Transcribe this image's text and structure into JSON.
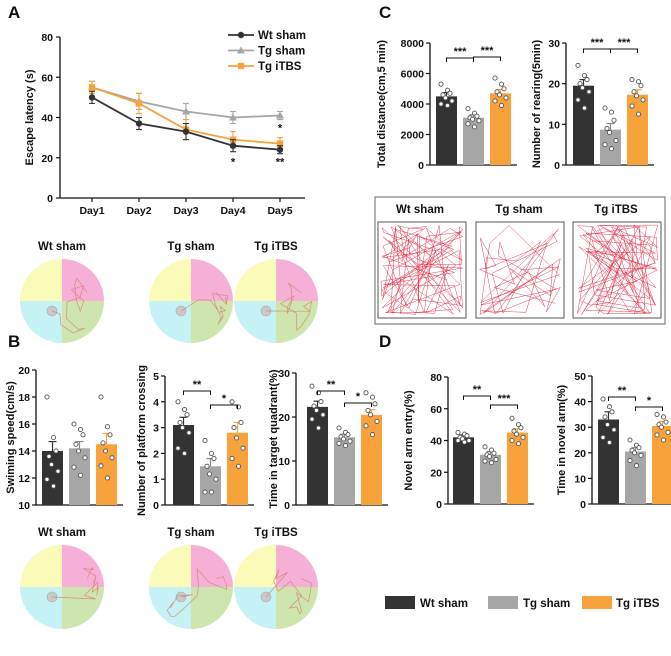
{
  "colors": {
    "wt": "#333333",
    "tg": "#a6a6a6",
    "itbs": "#f7a23b",
    "pink": "#f6b0d7",
    "yellow": "#fafab9",
    "cyan": "#c6f1f5",
    "green": "#cfe5ae",
    "track": "#e0203a"
  },
  "panels": {
    "a": "A",
    "b": "B",
    "c": "C",
    "d": "D"
  },
  "groups": {
    "wt": "Wt sham",
    "tg": "Tg sham",
    "itbs": "Tg iTBS"
  },
  "chart_data": [
    {
      "id": "escape-latency",
      "type": "line",
      "panel": "A",
      "x": [
        "Day1",
        "Day2",
        "Day3",
        "Day4",
        "Day5"
      ],
      "ylabel": "Escape latency (s)",
      "ylim": [
        0,
        80
      ],
      "yticks": [
        0,
        20,
        40,
        60,
        80
      ],
      "series": [
        {
          "key": "wt",
          "name": "Wt sham",
          "marker": "circle",
          "values": [
            50,
            37,
            33,
            26,
            24
          ],
          "err": [
            3,
            3,
            4,
            3,
            2
          ]
        },
        {
          "key": "tg",
          "name": "Tg sham",
          "marker": "triangle",
          "values": [
            55,
            48,
            43,
            40,
            41
          ],
          "err": [
            3,
            4,
            4,
            3,
            2
          ]
        },
        {
          "key": "itbs",
          "name": "Tg iTBS",
          "marker": "square",
          "values": [
            55,
            47,
            34,
            29,
            27
          ],
          "err": [
            3,
            5,
            5,
            4,
            3
          ]
        }
      ],
      "annotations": [
        {
          "x": "Day4",
          "text": "*"
        },
        {
          "x": "Day5",
          "text": "*"
        },
        {
          "x": "Day5",
          "text": "**"
        }
      ],
      "legend": "top-right"
    },
    {
      "id": "swim-speed",
      "type": "bar",
      "panel": "B",
      "ylabel": "Swiming speed(cm/s)",
      "ylim": [
        10,
        20
      ],
      "yticks": [
        10,
        12,
        14,
        16,
        18,
        20
      ],
      "categories": [
        "Wt sham",
        "Tg sham",
        "Tg iTBS"
      ],
      "values": [
        14.0,
        14.2,
        14.5
      ],
      "err": [
        0.7,
        0.5,
        0.8
      ],
      "points": [
        [
          18.0,
          15.0,
          14.0,
          13.6,
          13.0,
          12.5,
          11.9,
          11.4
        ],
        [
          16.0,
          15.6,
          15.2,
          14.5,
          14.0,
          13.5,
          12.8,
          12.2
        ],
        [
          18.0,
          15.8,
          15.2,
          14.6,
          14.0,
          13.5,
          12.9,
          12.0
        ]
      ],
      "sig": []
    },
    {
      "id": "platform-crossing",
      "type": "bar",
      "panel": "B",
      "ylabel": "Number of platform crossing",
      "ylim": [
        0,
        5
      ],
      "yticks": [
        0,
        1,
        2,
        3,
        4,
        5
      ],
      "categories": [
        "Wt sham",
        "Tg sham",
        "Tg iTBS"
      ],
      "values": [
        3.1,
        1.5,
        2.8
      ],
      "err": [
        0.3,
        0.3,
        0.4
      ],
      "points": [
        [
          4.0,
          3.7,
          3.5,
          3.2,
          3.0,
          2.8,
          2.2,
          2.0
        ],
        [
          2.5,
          2.0,
          1.8,
          1.5,
          1.2,
          1.0,
          0.5,
          0.5
        ],
        [
          4.0,
          3.8,
          3.2,
          3.0,
          2.6,
          2.2,
          1.8,
          1.5
        ]
      ],
      "sig": [
        {
          "from": 0,
          "to": 1,
          "text": "**"
        },
        {
          "from": 1,
          "to": 2,
          "text": "*"
        }
      ]
    },
    {
      "id": "target-quadrant",
      "type": "bar",
      "panel": "B",
      "ylabel": "Time in target quadrant(%)",
      "ylim": [
        0,
        30
      ],
      "yticks": [
        0,
        10,
        20,
        30
      ],
      "categories": [
        "Wt sham",
        "Tg sham",
        "Tg iTBS"
      ],
      "values": [
        22.3,
        15.4,
        20.5
      ],
      "err": [
        1.3,
        0.7,
        1.2
      ],
      "points": [
        [
          27.0,
          25.5,
          23.5,
          22.5,
          21.5,
          20.5,
          19.5,
          17.5
        ],
        [
          17.5,
          16.5,
          16.0,
          15.5,
          15.0,
          14.5,
          14.0,
          13.5
        ],
        [
          25.5,
          24.5,
          23.0,
          21.5,
          20.5,
          19.0,
          18.0,
          16.0
        ]
      ],
      "sig": [
        {
          "from": 0,
          "to": 1,
          "text": "**"
        },
        {
          "from": 1,
          "to": 2,
          "text": "*"
        }
      ]
    },
    {
      "id": "total-distance",
      "type": "bar",
      "panel": "C",
      "ylabel": "Total distance(cm,5 min)",
      "ylim": [
        0,
        8000
      ],
      "yticks": [
        0,
        2000,
        4000,
        6000,
        8000
      ],
      "categories": [
        "Wt sham",
        "Tg sham",
        "Tg iTBS"
      ],
      "values": [
        4500,
        3100,
        4700
      ],
      "err": [
        250,
        200,
        250
      ],
      "points": [
        [
          5300,
          4900,
          4700,
          4600,
          4400,
          4200,
          4000,
          3900
        ],
        [
          3700,
          3400,
          3200,
          3100,
          3000,
          2900,
          2700,
          2500
        ],
        [
          5700,
          5300,
          5000,
          4800,
          4600,
          4400,
          4200,
          3900
        ]
      ],
      "sig": [
        {
          "from": 0,
          "to": 1,
          "text": "***"
        },
        {
          "from": 1,
          "to": 2,
          "text": "***"
        }
      ]
    },
    {
      "id": "rearing",
      "type": "bar",
      "panel": "C",
      "ylabel": "Number of rearing(5min)",
      "ylim": [
        0,
        30
      ],
      "yticks": [
        0,
        10,
        20,
        30
      ],
      "categories": [
        "Wt sham",
        "Tg sham",
        "Tg iTBS"
      ],
      "values": [
        19.5,
        8.7,
        17.3
      ],
      "err": [
        1.5,
        1.5,
        1.2
      ],
      "points": [
        [
          24.5,
          22.0,
          21.0,
          20.0,
          19.0,
          18.0,
          16.0,
          14.0
        ],
        [
          14.0,
          13.0,
          11.0,
          9.0,
          8.0,
          6.0,
          5.0,
          4.0
        ],
        [
          21.0,
          20.5,
          19.5,
          18.0,
          17.0,
          16.0,
          14.5,
          12.5
        ]
      ],
      "sig": [
        {
          "from": 0,
          "to": 1,
          "text": "***"
        },
        {
          "from": 1,
          "to": 2,
          "text": "***"
        }
      ]
    },
    {
      "id": "novel-arm-entry",
      "type": "bar",
      "panel": "D",
      "ylabel": "Novel arm entry(%)",
      "ylim": [
        0,
        80
      ],
      "yticks": [
        0,
        20,
        40,
        60,
        80
      ],
      "categories": [
        "Wt sham",
        "Tg sham",
        "Tg iTBS"
      ],
      "values": [
        42,
        31,
        45
      ],
      "err": [
        1.5,
        2,
        2.5
      ],
      "points": [
        [
          45,
          44,
          43,
          42,
          41,
          40,
          40,
          39
        ],
        [
          36,
          34,
          32,
          31,
          30,
          28,
          27,
          26
        ],
        [
          54,
          50,
          48,
          46,
          44,
          42,
          40,
          38
        ]
      ],
      "sig": [
        {
          "from": 0,
          "to": 1,
          "text": "**"
        },
        {
          "from": 1,
          "to": 2,
          "text": "***"
        }
      ]
    },
    {
      "id": "time-novel-arm",
      "type": "bar",
      "panel": "D",
      "ylabel": "Time in novel arm(%)",
      "ylim": [
        0,
        50
      ],
      "yticks": [
        0,
        10,
        20,
        30,
        40,
        50
      ],
      "categories": [
        "Wt sham",
        "Tg sham",
        "Tg iTBS"
      ],
      "values": [
        33,
        20.5,
        30.5
      ],
      "err": [
        3,
        1.5,
        1.8
      ],
      "points": [
        [
          41,
          38,
          36,
          34,
          31,
          29,
          26,
          24
        ],
        [
          25,
          23,
          22,
          21,
          20,
          19,
          17,
          15
        ],
        [
          35,
          34,
          32,
          31,
          30,
          28,
          27,
          25
        ]
      ],
      "sig": [
        {
          "from": 0,
          "to": 1,
          "text": "**"
        },
        {
          "from": 1,
          "to": 2,
          "text": "*"
        }
      ]
    }
  ],
  "images": {
    "maze_top": [
      "Wt sham",
      "Tg sham",
      "Tg iTBS"
    ],
    "maze_bottom": [
      "Wt sham",
      "Tg sham",
      "Tg iTBS"
    ],
    "open_field": [
      "Wt sham",
      "Tg sham",
      "Tg iTBS"
    ]
  },
  "bottom_legend": [
    "Wt sham",
    "Tg sham",
    "Tg iTBS"
  ]
}
